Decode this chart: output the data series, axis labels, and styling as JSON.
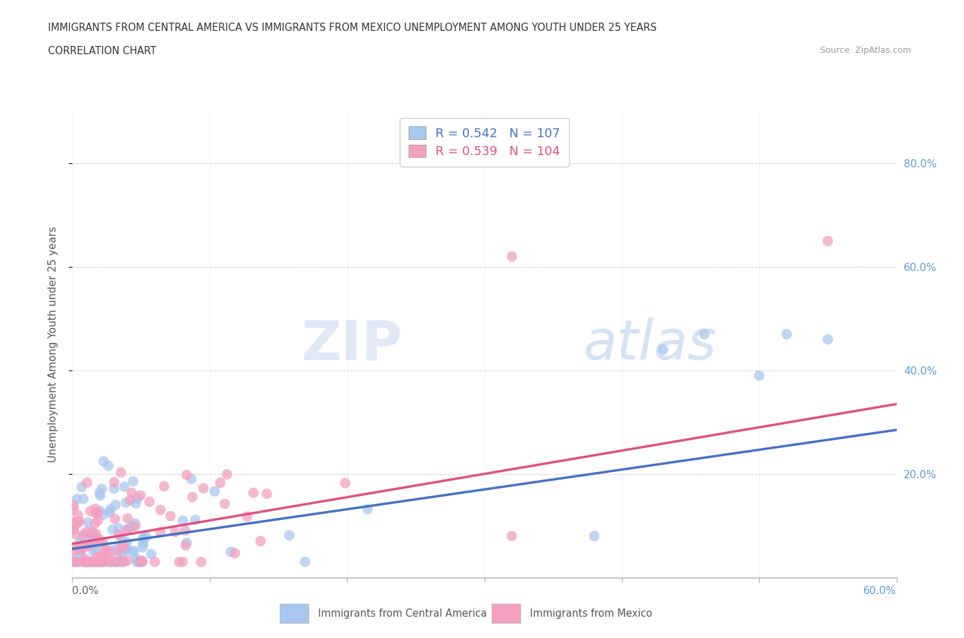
{
  "title_line1": "IMMIGRANTS FROM CENTRAL AMERICA VS IMMIGRANTS FROM MEXICO UNEMPLOYMENT AMONG YOUTH UNDER 25 YEARS",
  "title_line2": "CORRELATION CHART",
  "source": "Source: ZipAtlas.com",
  "ylabel": "Unemployment Among Youth under 25 years",
  "r_blue": 0.542,
  "n_blue": 107,
  "r_pink": 0.539,
  "n_pink": 104,
  "color_blue": "#A8C8F0",
  "color_pink": "#F4A0C0",
  "color_blue_line": "#4472C4",
  "color_pink_line": "#E05080",
  "legend_label_blue": "Immigrants from Central America",
  "legend_label_pink": "Immigrants from Mexico",
  "background_color": "#FFFFFF",
  "grid_color": "#CCCCCC",
  "watermark_zip": "ZIP",
  "watermark_atlas": "atlas",
  "ytick_labels": [
    "20.0%",
    "40.0%",
    "60.0%",
    "80.0%"
  ],
  "ytick_values": [
    0.2,
    0.4,
    0.6,
    0.8
  ],
  "xlim": [
    0.0,
    0.6
  ],
  "ylim": [
    0.0,
    0.9
  ],
  "trendline_blue_start": 0.055,
  "trendline_blue_end": 0.285,
  "trendline_pink_start": 0.065,
  "trendline_pink_end": 0.335
}
